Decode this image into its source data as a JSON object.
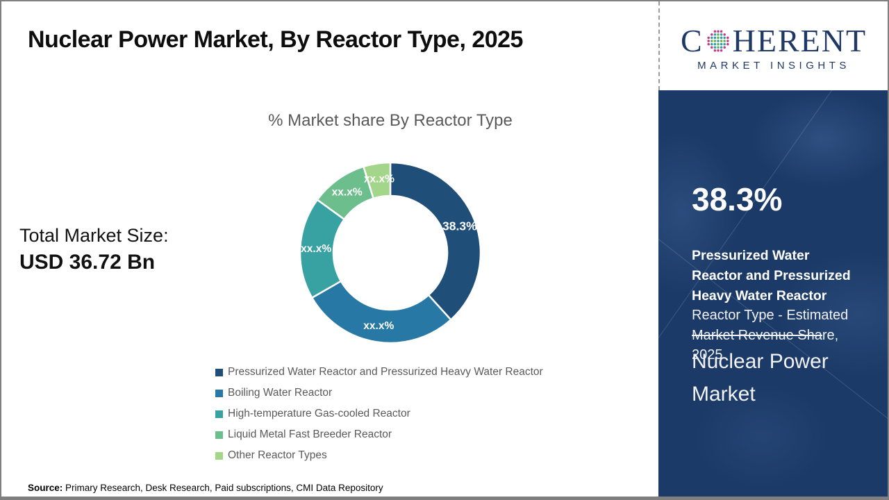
{
  "header": {
    "title": "Nuclear Power Market, By Reactor Type, 2025"
  },
  "logo": {
    "word_pre": "C",
    "word_post": "HERENT",
    "tagline": "MARKET INSIGHTS",
    "navy": "#1F3864",
    "globe_dot_colors": {
      "outer": "#C2368D",
      "mid": "#62B14E",
      "inner": "#2E9FA6"
    }
  },
  "chart_data": {
    "type": "donut",
    "title": "% Market share By Reactor Type",
    "categories": [
      "Pressurized Water Reactor and Pressurized Heavy Water Reactor",
      "Boiling Water Reactor",
      "High-temperature Gas-cooled Reactor",
      "Liquid Metal Fast Breeder Reactor",
      "Other Reactor Types"
    ],
    "values": [
      38.3,
      28.4,
      18.3,
      10.2,
      4.8
    ],
    "labels": [
      "38.3%",
      "xx.x%",
      "xx.x%",
      "xx.x%",
      "xx.x%"
    ],
    "colors": [
      "#1F4E79",
      "#2878A6",
      "#38A2A2",
      "#6CBE8D",
      "#A3D58A"
    ],
    "start_angle_deg": 0,
    "inner_radius_ratio": 0.63,
    "emphasis_index": 0,
    "legend_position": "bottom"
  },
  "left_panel": {
    "total_label": "Total Market Size:",
    "total_value": "USD 36.72 Bn",
    "source_label": "Source:",
    "source_text": " Primary Research, Desk Research, Paid subscriptions, CMI Data Repository"
  },
  "sidebar": {
    "background": "#1B3A67",
    "stat_value": "38.3%",
    "desc_bold": "Pressurized Water\nReactor and Pressurized\nHeavy Water Reactor",
    "desc_mid": "\nReactor Type - Estimated\n",
    "desc_struck": "Market Revenue Sha",
    "desc_tail": "re,\n2025",
    "market_title": "Nuclear Power\nMarket"
  }
}
